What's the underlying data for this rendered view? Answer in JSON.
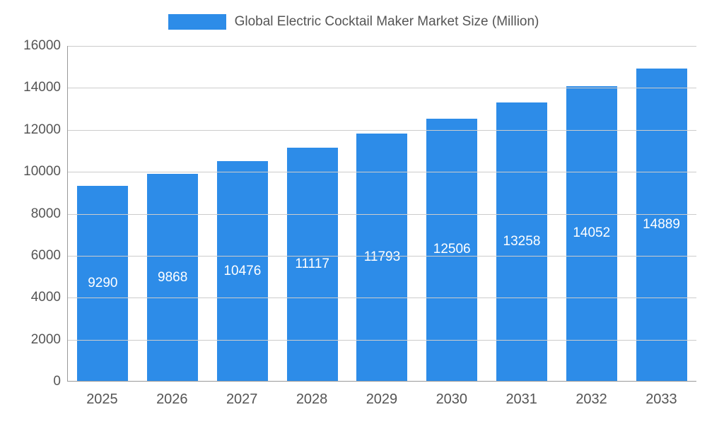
{
  "colors": {
    "bar": "#2D8CE8",
    "axis": "#999999",
    "grid": "#cccccc",
    "text": "#555555",
    "bar_label": "#ffffff"
  },
  "chart_data": {
    "type": "bar",
    "title": "Global Electric Cocktail Maker Market Size (Million)",
    "categories": [
      "2025",
      "2026",
      "2027",
      "2028",
      "2029",
      "2030",
      "2031",
      "2032",
      "2033"
    ],
    "values": [
      9290,
      9868,
      10476,
      11117,
      11793,
      12506,
      13258,
      14052,
      14889
    ],
    "xlabel": "",
    "ylabel": "",
    "ylim": [
      0,
      16000
    ],
    "yticks": [
      0,
      2000,
      4000,
      6000,
      8000,
      10000,
      12000,
      14000,
      16000
    ],
    "grid": "horizontal",
    "legend_position": "top",
    "bar_labels_inside": true
  }
}
